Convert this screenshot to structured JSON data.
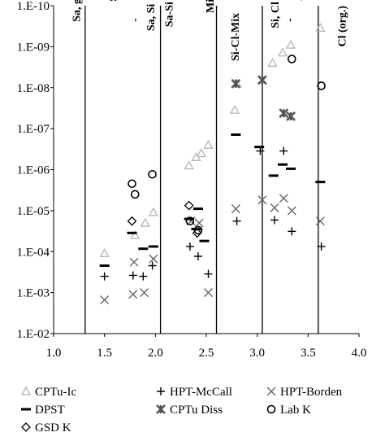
{
  "chart_data": {
    "type": "scatter",
    "title": "",
    "xlabel": "",
    "ylabel": "",
    "xlim": [
      1.0,
      4.0
    ],
    "ylim": [
      0.01,
      1e-10
    ],
    "y_scale": "log",
    "y_reversed": true,
    "x_ticks": [
      "1.0",
      "1.5",
      "2.0",
      "2.5",
      "3.0",
      "3.5",
      "4.0"
    ],
    "y_ticks": [
      "1.E-10",
      "1.E-09",
      "1.E-08",
      "1.E-07",
      "1.E-06",
      "1.E-05",
      "1.E-04",
      "1.E-03",
      "1.E-02"
    ],
    "grid": false,
    "legend_position": "bottom",
    "zone_boundaries": [
      1.31,
      2.05,
      2.6,
      3.05,
      3.6
    ],
    "zone_labels": [
      {
        "text": "Sa, gr",
        "x": 1.22,
        "y": 5e-11
      },
      {
        "text": "Sa",
        "x": 1.58,
        "y": 4e-11
      },
      {
        "text": "-",
        "x": 1.79,
        "y": 2e-10
      },
      {
        "text": "Sa, Si",
        "x": 1.95,
        "y": 9e-11
      },
      {
        "text": "Sa-Si",
        "x": 2.13,
        "y": 8e-11
      },
      {
        "text": "Mix",
        "x": 2.53,
        "y": 5e-11
      },
      {
        "text": "Si-Cl-Mix",
        "x": 2.78,
        "y": 1.5e-10
      },
      {
        "text": "Si, Cl",
        "x": 3.17,
        "y": 8e-11
      },
      {
        "text": "-",
        "x": 3.31,
        "y": 2e-10
      },
      {
        "text": "Cl",
        "x": 3.43,
        "y": 4e-11
      },
      {
        "text": "Cl (org.)",
        "x": 3.83,
        "y": 1e-10
      }
    ],
    "series": [
      {
        "name": "CPTu-Ic",
        "marker": "triangle",
        "color": "#b3b3b3",
        "points": [
          [
            1.5,
            0.00011
          ],
          [
            1.8,
            4e-05
          ],
          [
            1.9,
            2e-05
          ],
          [
            1.98,
            1.1e-05
          ],
          [
            2.33,
            8e-07
          ],
          [
            2.4,
            5e-07
          ],
          [
            2.45,
            4e-07
          ],
          [
            2.52,
            2.5e-07
          ],
          [
            2.78,
            3.5e-08
          ],
          [
            2.8,
            8e-09
          ],
          [
            3.15,
            2.5e-09
          ],
          [
            3.25,
            1.4e-09
          ],
          [
            3.33,
            9e-10
          ],
          [
            3.62,
            3.5e-10
          ]
        ]
      },
      {
        "name": "HPT-McCall",
        "marker": "plus",
        "color": "#000000",
        "points": [
          [
            1.5,
            0.0004
          ],
          [
            1.78,
            0.00038
          ],
          [
            1.88,
            0.0004
          ],
          [
            1.97,
            0.00022
          ],
          [
            2.34,
            7.5e-05
          ],
          [
            2.42,
            0.00013
          ],
          [
            2.52,
            0.00035
          ],
          [
            2.8,
            1.8e-05
          ],
          [
            3.03,
            3.5e-07
          ],
          [
            3.17,
            1.7e-05
          ],
          [
            3.26,
            3.5e-07
          ],
          [
            3.34,
            3.2e-05
          ],
          [
            3.63,
            7.5e-05
          ]
        ]
      },
      {
        "name": "HPT-Borden",
        "marker": "x",
        "color": "#666666",
        "points": [
          [
            1.5,
            0.0015
          ],
          [
            1.78,
            0.0011
          ],
          [
            1.79,
            0.00018
          ],
          [
            1.89,
            0.001
          ],
          [
            1.98,
            0.00015
          ],
          [
            2.35,
            1.8e-05
          ],
          [
            2.43,
            2e-05
          ],
          [
            2.52,
            0.001
          ],
          [
            2.79,
            9e-06
          ],
          [
            3.05,
            5.5e-06
          ],
          [
            3.17,
            8.5e-06
          ],
          [
            3.26,
            5e-06
          ],
          [
            3.34,
            1e-05
          ],
          [
            3.62,
            1.8e-05
          ]
        ]
      },
      {
        "name": "DPST",
        "marker": "dash",
        "color": "#000000",
        "points": [
          [
            1.5,
            0.00022
          ],
          [
            1.77,
            3.5e-05
          ],
          [
            1.88,
            8.5e-05
          ],
          [
            1.98,
            7.5e-05
          ],
          [
            2.33,
            1.6e-05
          ],
          [
            2.42,
            9e-06
          ],
          [
            2.4,
            2.8e-05
          ],
          [
            2.48,
            5.5e-05
          ],
          [
            2.79,
            1.4e-07
          ],
          [
            3.02,
            2.8e-07
          ],
          [
            3.16,
            1.4e-06
          ],
          [
            3.25,
            7.5e-07
          ],
          [
            3.33,
            9.5e-07
          ],
          [
            3.62,
            2e-06
          ]
        ]
      },
      {
        "name": "CPTu Diss",
        "marker": "asterisk",
        "color": "#555555",
        "points": [
          [
            2.79,
            8e-09
          ],
          [
            3.05,
            6.5e-09
          ],
          [
            3.26,
            4.2e-08
          ],
          [
            3.33,
            5e-08
          ]
        ]
      },
      {
        "name": "Lab K",
        "marker": "circle",
        "color": "#000000",
        "points": [
          [
            1.77,
            2.2e-06
          ],
          [
            1.8,
            4e-06
          ],
          [
            1.97,
            1.3e-06
          ],
          [
            2.34,
            1.8e-05
          ],
          [
            2.42,
            3e-05
          ],
          [
            3.34,
            2e-09
          ],
          [
            3.63,
            9e-09
          ]
        ]
      },
      {
        "name": "GSD K",
        "marker": "diamond",
        "color": "#000000",
        "points": [
          [
            1.77,
            1.8e-05
          ],
          [
            2.33,
            7.5e-06
          ],
          [
            2.41,
            3.5e-05
          ]
        ]
      }
    ]
  }
}
